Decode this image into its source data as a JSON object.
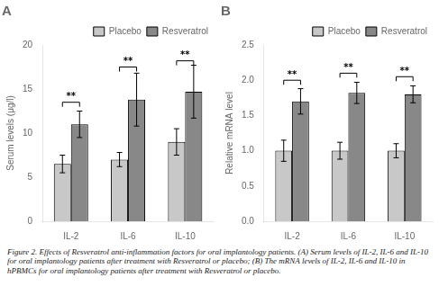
{
  "chart_data": [
    {
      "type": "bar",
      "title": "A",
      "ylabel": "Serum levels (μg/l)",
      "categories": [
        "IL-2",
        "IL-6",
        "IL-10"
      ],
      "series": [
        {
          "name": "Placebo",
          "color": "#c8c8c8",
          "values": [
            6.5,
            7.0,
            9.0
          ],
          "errors": [
            1.0,
            0.8,
            1.5
          ]
        },
        {
          "name": "Resveratrol",
          "color": "#888888",
          "values": [
            11.0,
            13.8,
            14.7
          ],
          "errors": [
            1.5,
            3.0,
            3.0
          ]
        }
      ],
      "annotations": [
        {
          "x": "IL-2",
          "text": "**",
          "y": 13.5
        },
        {
          "x": "IL-6",
          "text": "**",
          "y": 17.5
        },
        {
          "x": "IL-10",
          "text": "**",
          "y": 18.2
        }
      ],
      "ylim": [
        0,
        20
      ],
      "yticks": [
        0,
        5,
        10,
        15,
        20
      ],
      "grid": false,
      "legend": "upper right"
    },
    {
      "type": "bar",
      "title": "B",
      "ylabel": "Relative mRNA level",
      "categories": [
        "IL-2",
        "IL-6",
        "IL-10"
      ],
      "series": [
        {
          "name": "Placebo",
          "color": "#c8c8c8",
          "values": [
            1.0,
            1.0,
            1.0
          ],
          "errors": [
            0.15,
            0.12,
            0.1
          ]
        },
        {
          "name": "Resveratrol",
          "color": "#888888",
          "values": [
            1.7,
            1.82,
            1.8
          ],
          "errors": [
            0.18,
            0.15,
            0.12
          ]
        }
      ],
      "annotations": [
        {
          "x": "IL-2",
          "text": "**",
          "y": 2.0
        },
        {
          "x": "IL-6",
          "text": "**",
          "y": 2.1
        },
        {
          "x": "IL-10",
          "text": "**",
          "y": 2.05
        }
      ],
      "ylim": [
        0,
        2.5
      ],
      "yticks": [
        {
          "value": 0,
          "label": "0.0"
        },
        0.5,
        {
          "value": 1,
          "label": "1.0"
        },
        1.5,
        {
          "value": 2,
          "label": "2.0"
        },
        2.5
      ],
      "grid": false,
      "legend": "upper right"
    }
  ],
  "caption": "Figure 2. Effects of Resveratrol anti-inflammation factors for oral implantology patients. (A) Serum levels of IL-2, IL-6 and IL-10 for oral implantology patients after treatment with Resveratrol or placebo; (B) The mRNA levels of IL-2, IL-6 and IL-10 in hPBMCs for oral implantology patients after treatment with Resveratrol or placebo."
}
